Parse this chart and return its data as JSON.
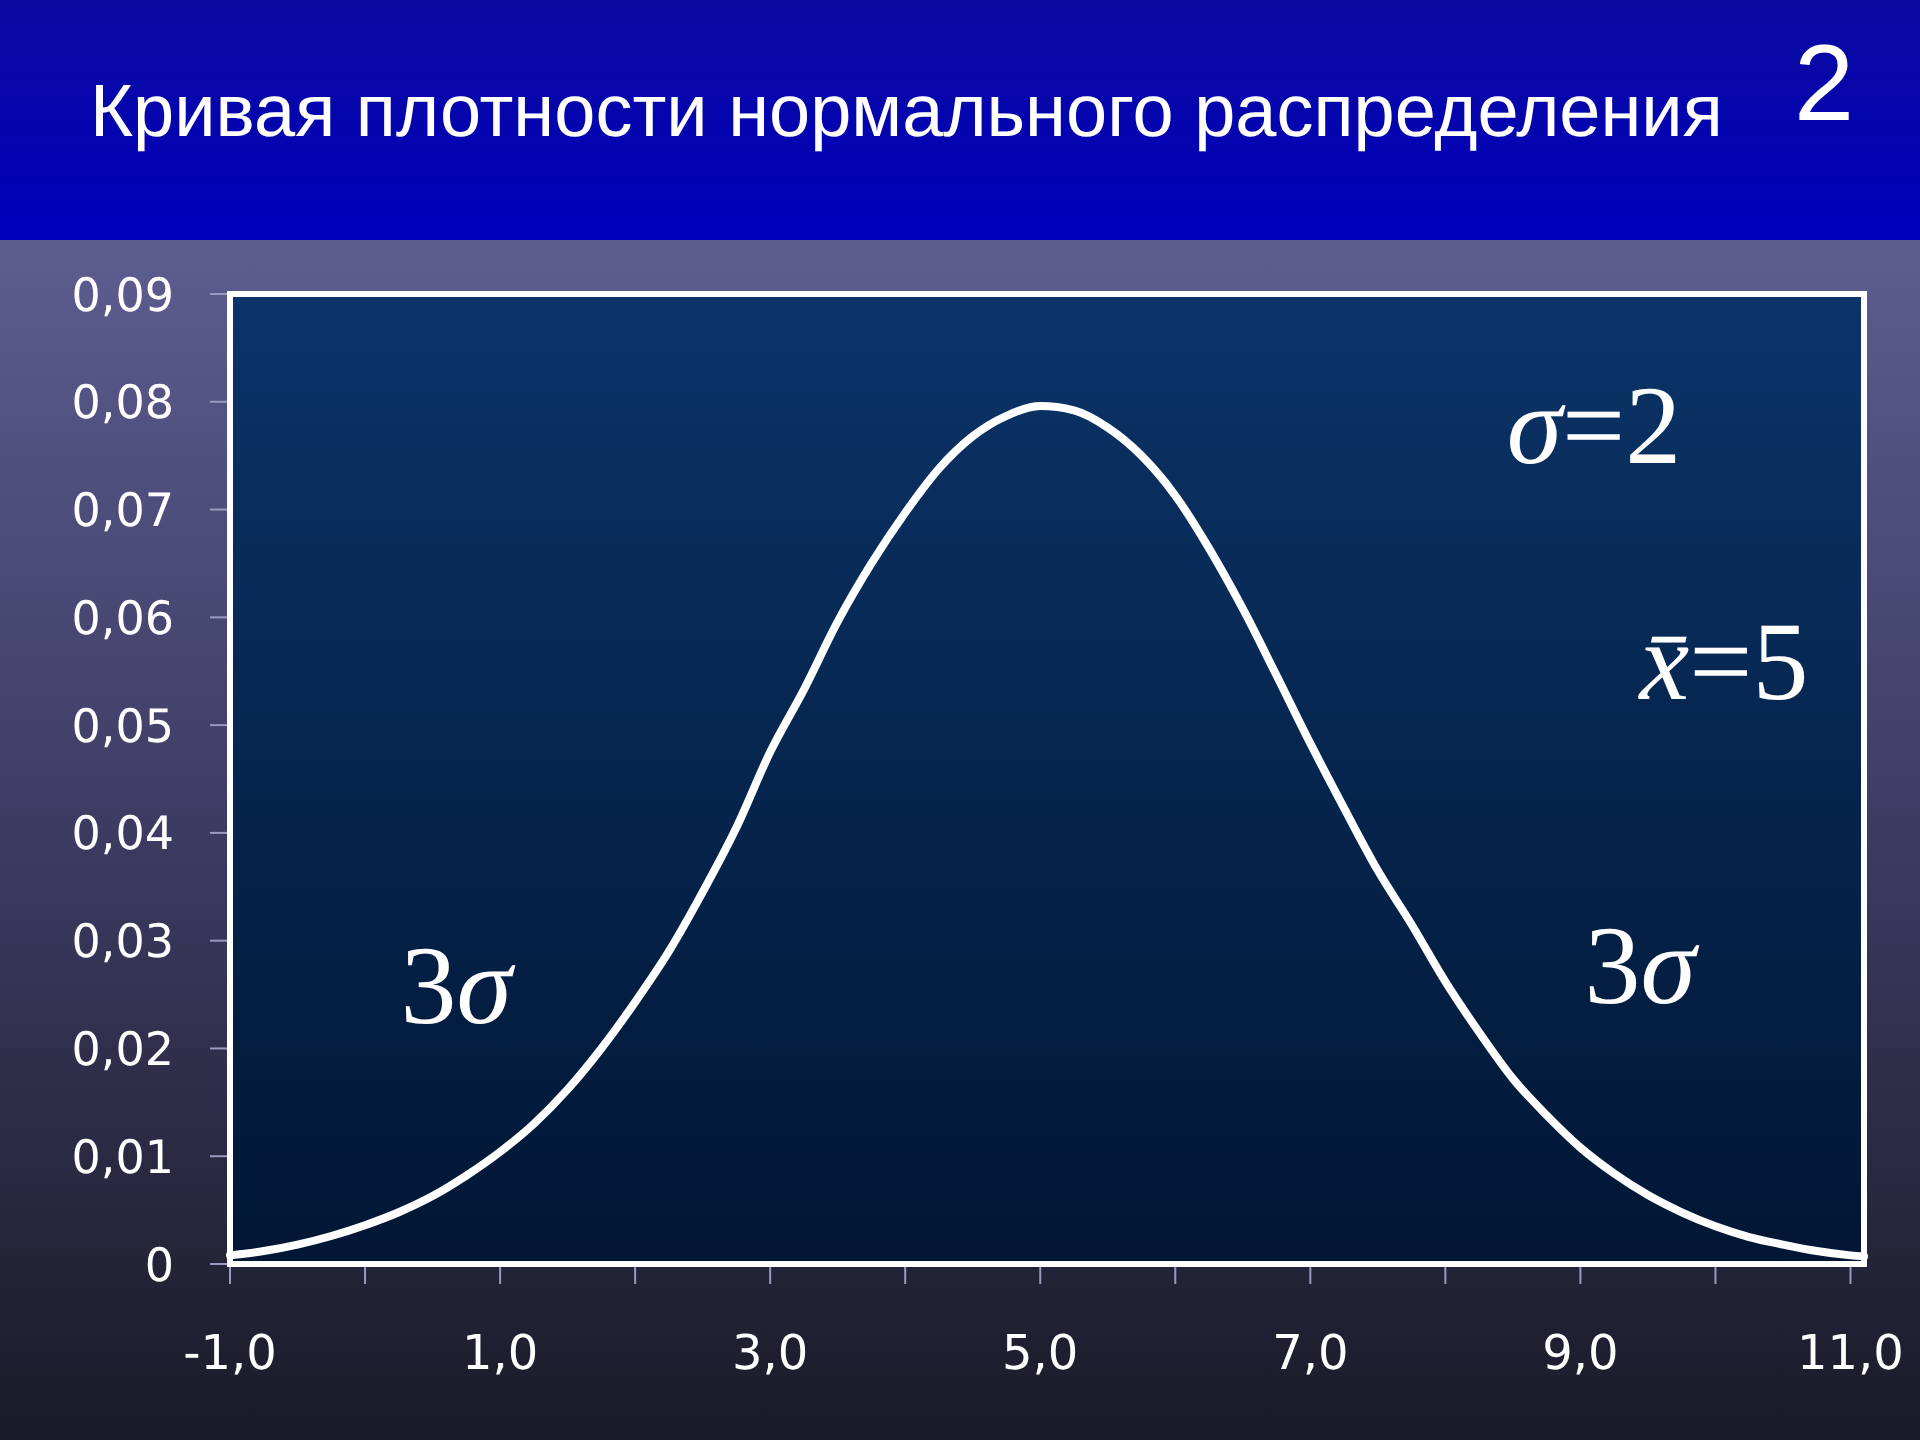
{
  "chart_data": {
    "type": "line",
    "title": "Кривая плотности нормального распределения",
    "x": [
      -1,
      -0.75,
      -0.5,
      -0.25,
      0,
      0.25,
      0.5,
      0.75,
      1,
      1.25,
      1.5,
      1.75,
      2,
      2.25,
      2.5,
      2.75,
      3,
      3.25,
      3.5,
      3.75,
      4,
      4.25,
      4.5,
      4.75,
      5,
      5.25,
      5.5,
      5.75,
      6,
      6.25,
      6.5,
      6.75,
      7,
      7.25,
      7.5,
      7.75,
      8,
      8.25,
      8.5,
      8.75,
      9,
      9.25,
      9.5,
      9.75,
      10,
      10.25,
      10.5,
      10.75,
      11,
      11.1
    ],
    "series": [
      {
        "color": "#ffffff",
        "values": [
          0.0008,
          0.0012,
          0.0018,
          0.0026,
          0.0036,
          0.0048,
          0.0063,
          0.0082,
          0.0104,
          0.013,
          0.0162,
          0.02,
          0.0243,
          0.029,
          0.0345,
          0.0405,
          0.0475,
          0.0533,
          0.0596,
          0.065,
          0.0697,
          0.0738,
          0.0768,
          0.0787,
          0.0796,
          0.0792,
          0.0776,
          0.075,
          0.0713,
          0.0664,
          0.0608,
          0.0546,
          0.0483,
          0.0423,
          0.0365,
          0.0315,
          0.0262,
          0.0215,
          0.0172,
          0.0138,
          0.0108,
          0.0084,
          0.0064,
          0.0048,
          0.0035,
          0.0025,
          0.0018,
          0.0012,
          0.0008,
          0.0007
        ]
      }
    ],
    "xlim": [
      -1,
      11.1
    ],
    "ylim": [
      0,
      0.09
    ],
    "xticks": [
      {
        "value": -1,
        "label": "-1,0"
      },
      {
        "value": 0,
        "label": null
      },
      {
        "value": 1,
        "label": "1,0"
      },
      {
        "value": 2,
        "label": null
      },
      {
        "value": 3,
        "label": "3,0"
      },
      {
        "value": 4,
        "label": null
      },
      {
        "value": 5,
        "label": "5,0"
      },
      {
        "value": 6,
        "label": null
      },
      {
        "value": 7,
        "label": "7,0"
      },
      {
        "value": 8,
        "label": null
      },
      {
        "value": 9,
        "label": "9,0"
      },
      {
        "value": 10,
        "label": null
      },
      {
        "value": 11,
        "label": "11,0"
      }
    ],
    "yticks": [
      0,
      {
        "value": 0.01,
        "label": "0,01"
      },
      {
        "value": 0.02,
        "label": "0,02"
      },
      {
        "value": 0.03,
        "label": "0,03"
      },
      {
        "value": 0.04,
        "label": "0,04"
      },
      {
        "value": 0.05,
        "label": "0,05"
      },
      {
        "value": 0.06,
        "label": "0,06"
      },
      {
        "value": 0.07,
        "label": "0,07"
      },
      {
        "value": 0.08,
        "label": "0,08"
      },
      {
        "value": 0.09,
        "label": "0,09"
      }
    ],
    "annotations": [
      "2",
      "σ=2",
      "x̄=5",
      "3σ",
      "3σ"
    ]
  }
}
